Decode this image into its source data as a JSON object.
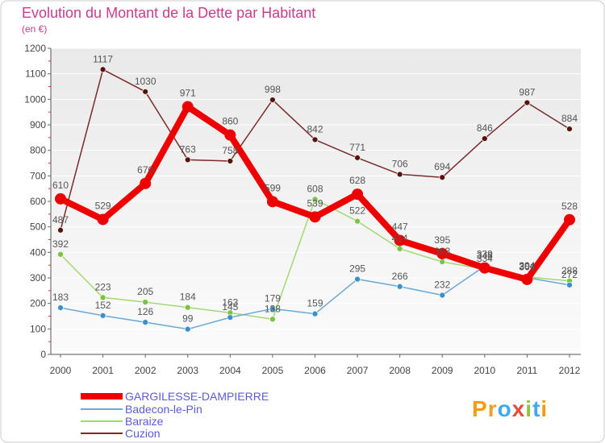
{
  "chart_data": {
    "type": "line",
    "title": "Evolution du Montant de la Dette par Habitant",
    "subtitle": "(en €)",
    "categories": [
      "2000",
      "2001",
      "2002",
      "2003",
      "2004",
      "2005",
      "2006",
      "2007",
      "2008",
      "2009",
      "2010",
      "2011",
      "2012"
    ],
    "ylim": [
      0,
      1200
    ],
    "yticks": [
      0,
      100,
      200,
      300,
      400,
      500,
      600,
      700,
      800,
      900,
      1000,
      1100,
      1200
    ],
    "grid": true,
    "legend": "bottom-left",
    "series": [
      {
        "name": "GARGILESSE-DAMPIERRE",
        "color": "#ee0000",
        "marker": "#ee0000",
        "values": [
          610,
          529,
          670,
          971,
          860,
          599,
          539,
          628,
          447,
          395,
          339,
          294,
          528
        ]
      },
      {
        "name": "Badecon-le-Pin",
        "color": "#6aa8d8",
        "marker": "#3a8fd0",
        "values": [
          183,
          152,
          126,
          99,
          145,
          179,
          159,
          295,
          266,
          232,
          346,
          301,
          272
        ]
      },
      {
        "name": "Baraize",
        "color": "#a2d874",
        "marker": "#7cc242",
        "values": [
          392,
          223,
          205,
          184,
          163,
          138,
          608,
          522,
          414,
          363,
          334,
          304,
          288
        ]
      },
      {
        "name": "Cuzion",
        "color": "#7a2a2a",
        "marker": "#5a1010",
        "values": [
          487,
          1117,
          1030,
          763,
          758,
          998,
          842,
          771,
          706,
          694,
          846,
          987,
          884
        ]
      }
    ]
  },
  "logo": {
    "text": "Proxiti",
    "colors": [
      "#f39c12",
      "#f0a020",
      "#3fa9f5",
      "#e74c3c",
      "#8cc63f",
      "#3fa9f5",
      "#f39c12"
    ]
  }
}
